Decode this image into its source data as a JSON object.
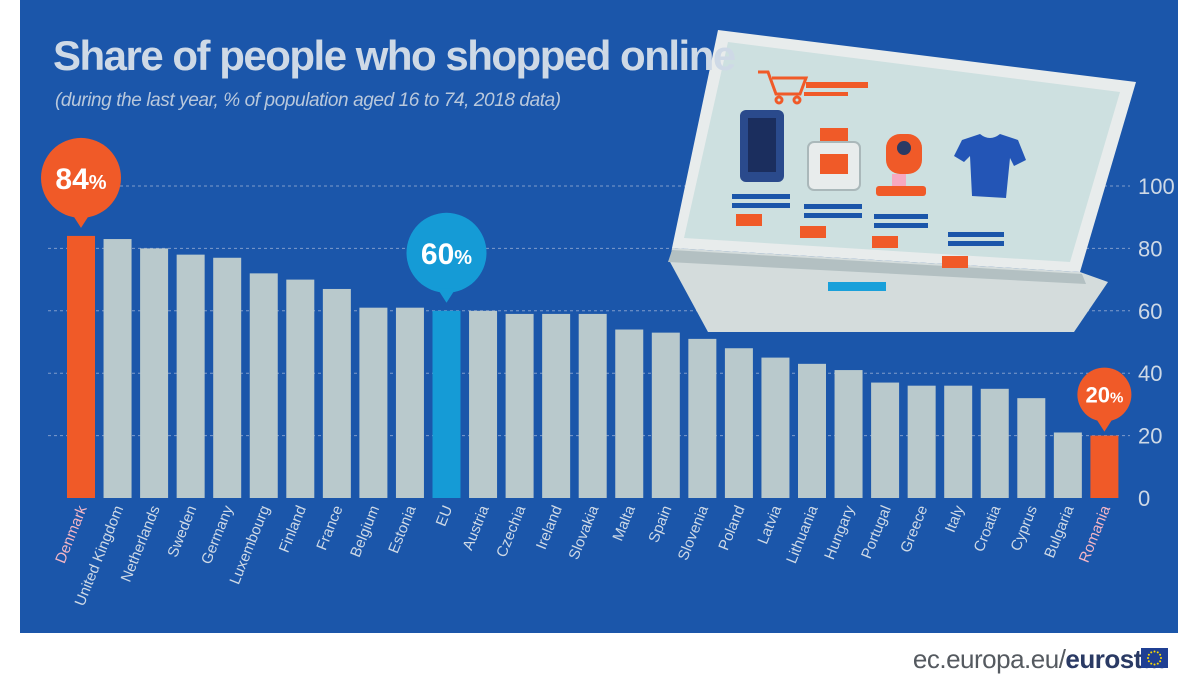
{
  "source": {
    "url_text": "ec.europa.eu/",
    "brand": "eurostat"
  },
  "colors": {
    "background": "#1b56aa",
    "bar": "#b9c9cc",
    "highlight_max": "#f05a28",
    "highlight_eu": "#159bd6",
    "text": "#ced9e6",
    "gridline": "#7f9ccb"
  },
  "chart_data": {
    "type": "bar",
    "title": "Share of people who shopped online",
    "subtitle": "(during the last year, % of population aged 16 to 74, 2018 data)",
    "categories": [
      "Denmark",
      "United Kingdom",
      "Netherlands",
      "Sweden",
      "Germany",
      "Luxembourg",
      "Finland",
      "France",
      "Belgium",
      "Estonia",
      "EU",
      "Austria",
      "Czechia",
      "Ireland",
      "Slovakia",
      "Malta",
      "Spain",
      "Slovenia",
      "Poland",
      "Latvia",
      "Lithuania",
      "Hungary",
      "Portugal",
      "Greece",
      "Italy",
      "Croatia",
      "Cyprus",
      "Bulgaria",
      "Romania"
    ],
    "values": [
      84,
      83,
      80,
      78,
      77,
      72,
      70,
      67,
      61,
      61,
      60,
      60,
      59,
      59,
      59,
      54,
      53,
      51,
      48,
      45,
      43,
      41,
      37,
      36,
      36,
      35,
      32,
      21,
      20
    ],
    "highlights": {
      "Denmark": "max",
      "EU": "eu",
      "Romania": "min"
    },
    "callouts": [
      {
        "category": "Denmark",
        "value": 84,
        "label": "84",
        "unit": "%"
      },
      {
        "category": "EU",
        "value": 60,
        "label": "60",
        "unit": "%"
      },
      {
        "category": "Romania",
        "value": 20,
        "label": "20",
        "unit": "%"
      }
    ],
    "yaxis": {
      "ticks": [
        "0",
        "20",
        "40",
        "60",
        "80",
        "100"
      ],
      "position": "right"
    },
    "ylim": [
      0,
      100
    ],
    "grid": true,
    "legend": "none",
    "illustration": "laptop-shopping-cart-illustration"
  }
}
